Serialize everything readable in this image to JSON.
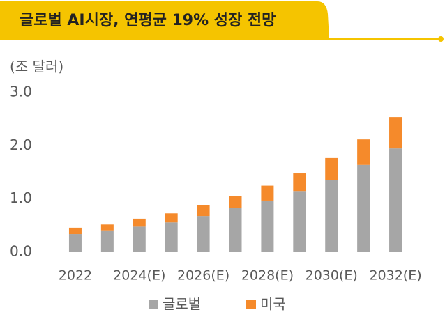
{
  "chart_data": {
    "type": "stacked_bar",
    "title": "글로벌 AI시장, 연평균 19% 성장 전망",
    "y_axis_label": "(조 달러)",
    "categories": [
      "2022",
      null,
      "2024(E)",
      null,
      "2026(E)",
      null,
      "2028(E)",
      null,
      "2030(E)",
      null,
      "2032(E)"
    ],
    "series": [
      {
        "name": "글로벌",
        "color": "#a6a6a6",
        "values": [
          0.34,
          0.41,
          0.48,
          0.56,
          0.68,
          0.83,
          0.97,
          1.15,
          1.36,
          1.64,
          1.95
        ]
      },
      {
        "name": "미국",
        "color": "#f58a2b",
        "values": [
          0.12,
          0.11,
          0.15,
          0.17,
          0.21,
          0.22,
          0.28,
          0.33,
          0.41,
          0.48,
          0.59
        ]
      }
    ],
    "ylim": [
      0,
      3
    ],
    "yticks": [
      {
        "value": 0,
        "label": "0.0"
      },
      {
        "value": 1,
        "label": "1.0"
      },
      {
        "value": 2,
        "label": "2.0"
      },
      {
        "value": 3,
        "label": "3.0"
      }
    ],
    "legend": "bottom"
  }
}
